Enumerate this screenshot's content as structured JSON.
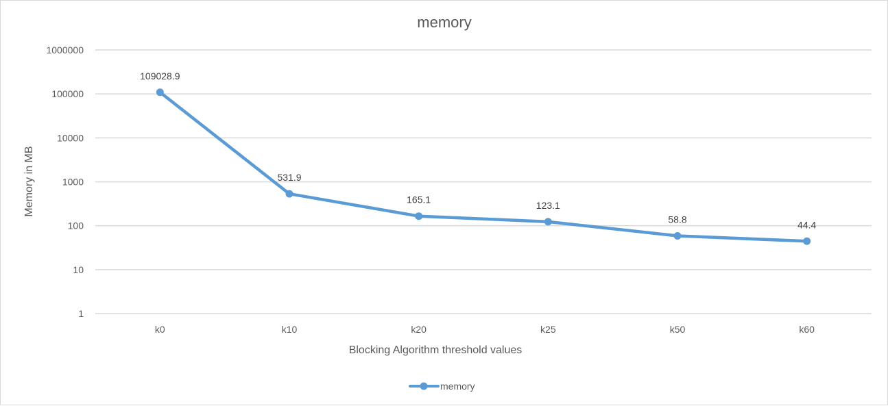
{
  "chart_data": {
    "type": "line",
    "title": "memory",
    "xlabel": "Blocking Algorithm threshold values",
    "ylabel": "Memory in MB",
    "categories": [
      "k0",
      "k10",
      "k20",
      "k25",
      "k50",
      "k60"
    ],
    "series": [
      {
        "name": "memory",
        "values": [
          109028.9,
          531.9,
          165.1,
          123.1,
          58.8,
          44.4
        ],
        "labels": [
          "109028.9",
          "531.9",
          "165.1",
          "123.1",
          "58.8",
          "44.4"
        ]
      }
    ],
    "y_scale": "log",
    "ylim": [
      1,
      1000000
    ],
    "y_ticks": [
      "1",
      "10",
      "100",
      "1000",
      "10000",
      "100000",
      "1000000"
    ],
    "grid": true,
    "legend_position": "bottom",
    "colors": {
      "series": "#5b9bd5",
      "grid": "#d9d9d9",
      "text": "#595959"
    }
  }
}
